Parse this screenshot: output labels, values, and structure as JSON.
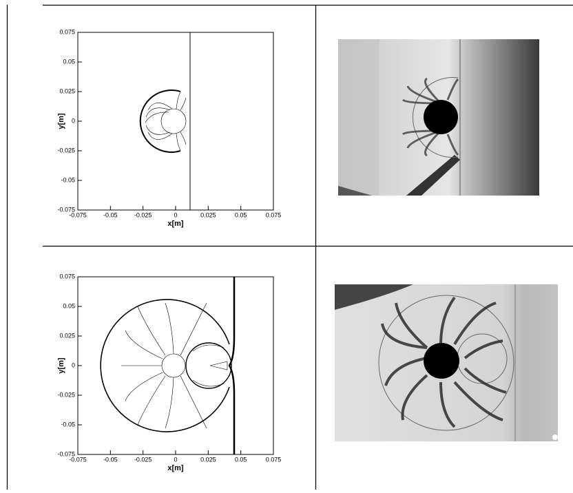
{
  "figure": {
    "panels": [
      {
        "type": "contour",
        "xlabel": "x[m]",
        "ylabel": "y[m]",
        "xlim": [
          -0.075,
          0.075
        ],
        "ylim": [
          -0.075,
          0.075
        ],
        "xticks": [
          -0.075,
          -0.05,
          -0.025,
          0,
          0.025,
          0.05,
          0.075
        ],
        "yticks": [
          -0.075,
          -0.05,
          -0.025,
          0,
          0.025,
          0.05,
          0.075
        ]
      },
      {
        "type": "contour",
        "xlabel": "x[m]",
        "ylabel": "y[m]",
        "xlim": [
          -0.075,
          0.075
        ],
        "ylim": [
          -0.075,
          0.075
        ],
        "xticks": [
          -0.075,
          -0.05,
          -0.025,
          0,
          0.025,
          0.05,
          0.075
        ],
        "yticks": [
          -0.075,
          -0.05,
          -0.025,
          0,
          0.025,
          0.05,
          0.075
        ]
      }
    ]
  }
}
